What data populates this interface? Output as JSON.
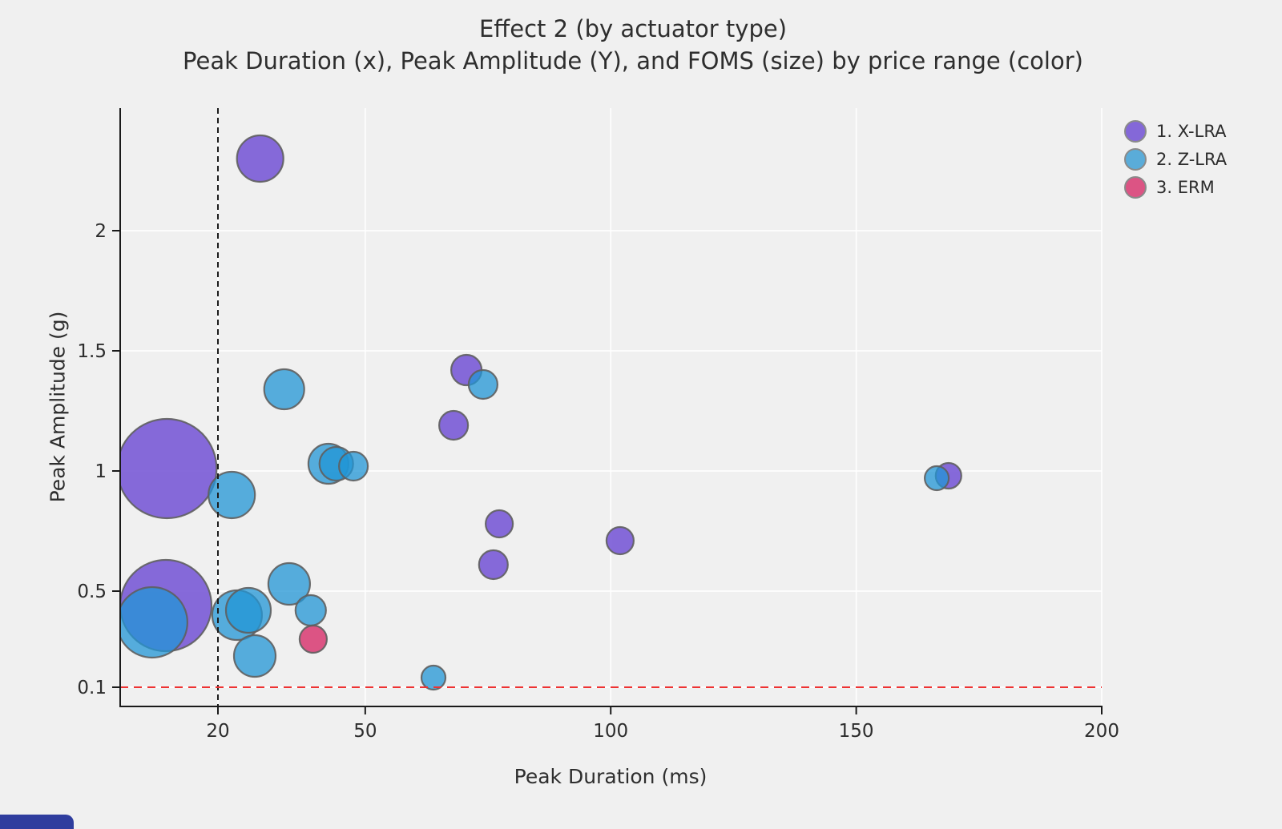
{
  "title": "Effect 2 (by actuator type)",
  "subtitle": "Peak Duration (x), Peak Amplitude (Y), and FOMS (size) by price range (color)",
  "chart_data": {
    "type": "scatter",
    "subtype": "bubble",
    "title": "Effect 2 (by actuator type)",
    "subtitle": "Peak Duration (x), Peak Amplitude (Y), and FOMS (size) by price range (color)",
    "xlabel": "Peak Duration (ms)",
    "ylabel": "Peak Amplitude (g)",
    "size_encodes": "FOMS",
    "color_encodes": "price range / actuator type",
    "grid": true,
    "legend_position": "top-right",
    "x_axis": {
      "range": [
        0.09,
        200
      ],
      "ticks": [
        20,
        50,
        100,
        150,
        200
      ]
    },
    "y_axis": {
      "range": [
        0.02,
        2.51
      ],
      "ticks": [
        0.1,
        0.5,
        1,
        1.5,
        2
      ]
    },
    "reference_lines": [
      {
        "axis": "x",
        "value": 20,
        "style": "dashed",
        "color": "#1c1c1c"
      },
      {
        "axis": "y",
        "value": 0.1,
        "style": "dashed",
        "color": "#ee3333"
      }
    ],
    "series": [
      {
        "name": "1. X-LRA",
        "legend_color": "#8468d8",
        "fill": "rgba(108,74,211,0.82)",
        "stroke": "rgba(95,95,95,0.9)",
        "points": [
          {
            "x": 28.6,
            "y": 2.3,
            "r": 29
          },
          {
            "x": 9.6,
            "y": 1.01,
            "r": 62
          },
          {
            "x": 9.4,
            "y": 0.44,
            "r": 57
          },
          {
            "x": 70.6,
            "y": 1.42,
            "r": 19
          },
          {
            "x": 68.0,
            "y": 1.19,
            "r": 18
          },
          {
            "x": 77.3,
            "y": 0.78,
            "r": 17
          },
          {
            "x": 76.1,
            "y": 0.61,
            "r": 18
          },
          {
            "x": 101.9,
            "y": 0.71,
            "r": 17
          },
          {
            "x": 168.8,
            "y": 0.98,
            "r": 16
          }
        ]
      },
      {
        "name": "2. Z-LRA",
        "legend_color": "#5aacd9",
        "fill": "rgba(33,149,213,0.75)",
        "stroke": "rgba(95,95,95,0.9)",
        "points": [
          {
            "x": 22.8,
            "y": 0.9,
            "r": 29
          },
          {
            "x": 6.6,
            "y": 0.37,
            "r": 44
          },
          {
            "x": 23.9,
            "y": 0.4,
            "r": 31
          },
          {
            "x": 26.2,
            "y": 0.42,
            "r": 28
          },
          {
            "x": 34.5,
            "y": 0.53,
            "r": 26
          },
          {
            "x": 38.9,
            "y": 0.42,
            "r": 19
          },
          {
            "x": 27.5,
            "y": 0.23,
            "r": 26
          },
          {
            "x": 33.5,
            "y": 1.34,
            "r": 25
          },
          {
            "x": 42.5,
            "y": 1.03,
            "r": 25
          },
          {
            "x": 44.1,
            "y": 1.03,
            "r": 21
          },
          {
            "x": 47.6,
            "y": 1.02,
            "r": 18
          },
          {
            "x": 74.0,
            "y": 1.36,
            "r": 18
          },
          {
            "x": 63.9,
            "y": 0.14,
            "r": 15
          },
          {
            "x": 166.4,
            "y": 0.97,
            "r": 15
          }
        ]
      },
      {
        "name": "3. ERM",
        "legend_color": "#dc5484",
        "fill": "rgba(216,56,113,0.85)",
        "stroke": "rgba(95,95,95,0.9)",
        "points": [
          {
            "x": 39.4,
            "y": 0.3,
            "r": 17
          }
        ]
      }
    ]
  },
  "style": {
    "background": "#f0f0f0",
    "gridline_color": "#ffffff",
    "axis_color": "#1a1a1a",
    "tick_label_color": "#2d2d2d"
  }
}
